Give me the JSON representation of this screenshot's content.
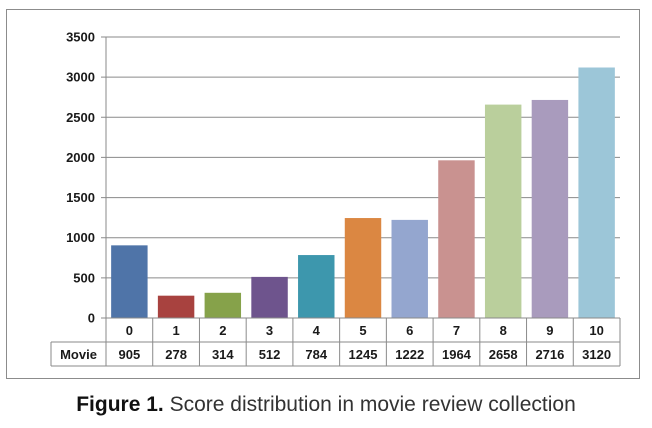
{
  "caption": {
    "label": "Figure 1.",
    "text": " Score distribution in movie review collection"
  },
  "chart_data": {
    "type": "bar",
    "categories": [
      "0",
      "1",
      "2",
      "3",
      "4",
      "5",
      "6",
      "7",
      "8",
      "9",
      "10"
    ],
    "series": [
      {
        "name": "Movie",
        "values": [
          905,
          278,
          314,
          512,
          784,
          1245,
          1222,
          1964,
          2658,
          2716,
          3120
        ]
      }
    ],
    "bar_colors": [
      "#4f74a8",
      "#a8423f",
      "#86a24a",
      "#6e548d",
      "#3d97ad",
      "#db8742",
      "#94a6cf",
      "#c99290",
      "#bacf9c",
      "#a99bbd",
      "#9cc6d8"
    ],
    "ylim": [
      0,
      3500
    ],
    "yticks": [
      0,
      500,
      1000,
      1500,
      2000,
      2500,
      3000,
      3500
    ],
    "grid": true,
    "data_table": true
  }
}
